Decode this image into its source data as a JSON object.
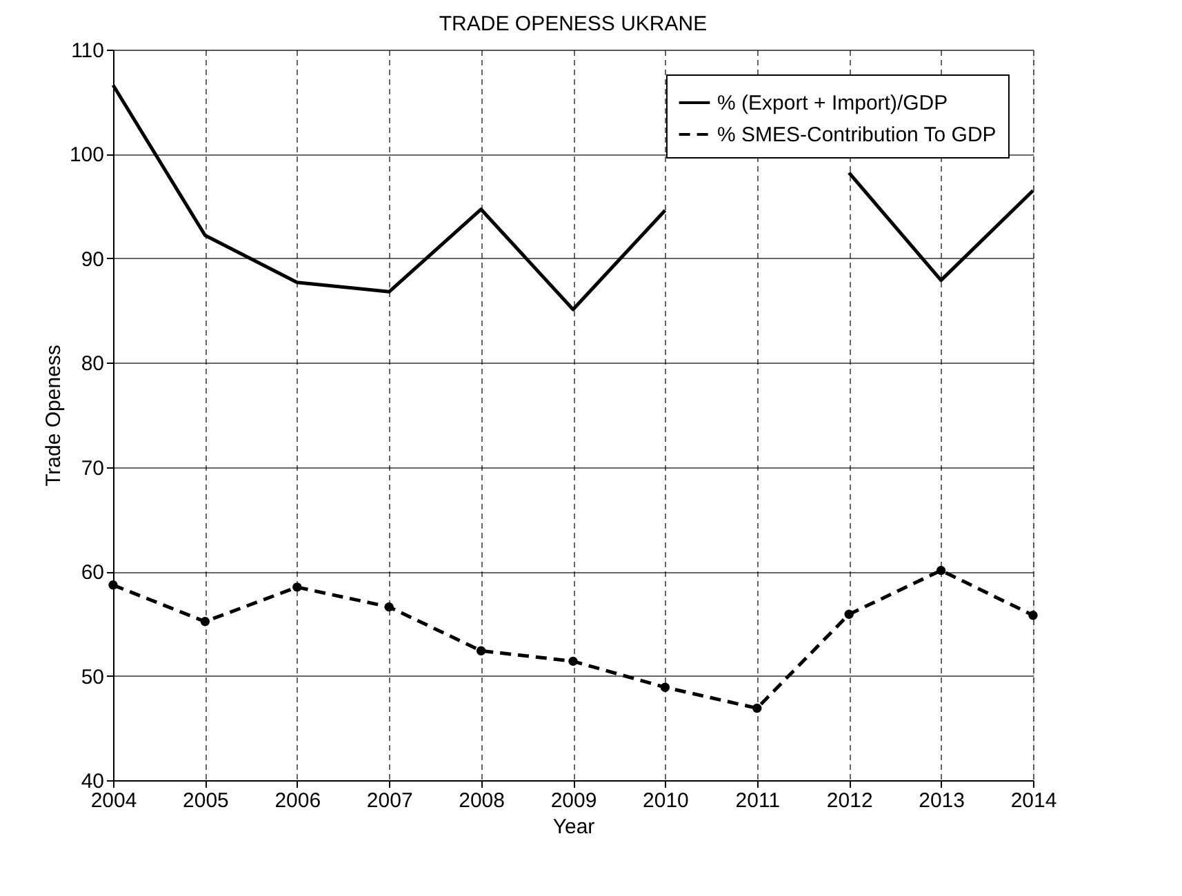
{
  "chart_data": {
    "type": "line",
    "title": "TRADE OPENESS UKRANE",
    "xlabel": "Year",
    "ylabel": "Trade Openess",
    "x": [
      2004,
      2005,
      2006,
      2007,
      2008,
      2009,
      2010,
      2011,
      2012,
      2013,
      2014
    ],
    "series": [
      {
        "name": "% (Export + Import)/GDP",
        "color": "#000000",
        "line_style": "solid",
        "marker": "none",
        "values": [
          106.6,
          92.2,
          87.7,
          86.8,
          94.7,
          85.1,
          94.6,
          null,
          98.2,
          87.9,
          96.5
        ]
      },
      {
        "name": "% SMES-Contribution To GDP",
        "color": "#000000",
        "line_style": "dashed",
        "marker": "circle",
        "values": [
          58.7,
          55.2,
          58.5,
          56.6,
          52.4,
          51.4,
          48.9,
          46.9,
          55.9,
          60.1,
          55.8
        ]
      }
    ],
    "xlim": [
      2004,
      2014
    ],
    "xticks": [
      2004,
      2005,
      2006,
      2007,
      2008,
      2009,
      2010,
      2011,
      2012,
      2013,
      2014
    ],
    "ylim": [
      40,
      110
    ],
    "yticks": [
      40,
      50,
      60,
      70,
      80,
      90,
      100,
      110
    ],
    "grid": true,
    "legend": "top right"
  }
}
